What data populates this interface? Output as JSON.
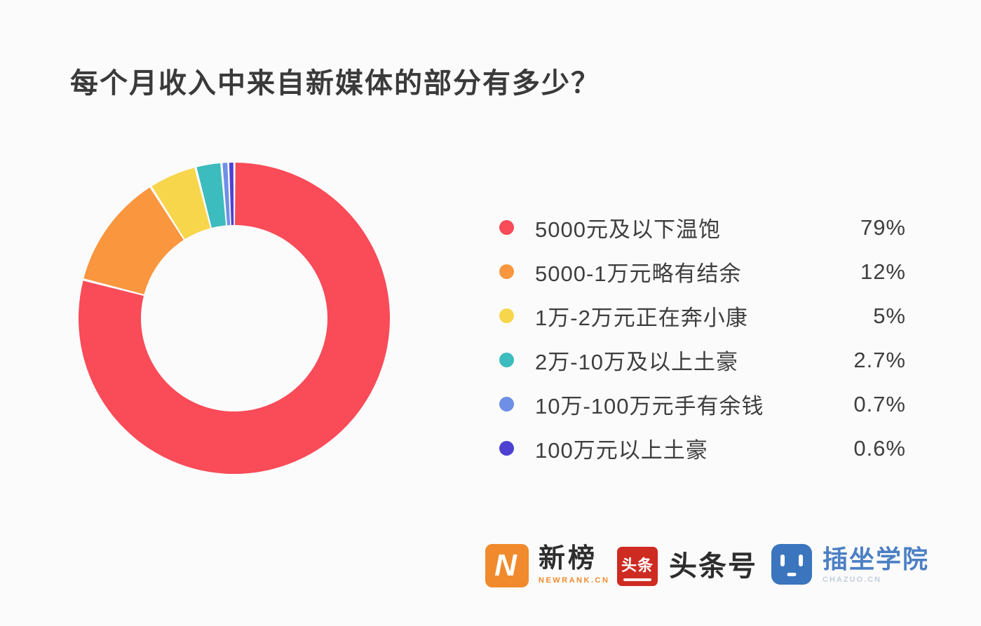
{
  "page": {
    "background_color": "#FBFBFB"
  },
  "title": "每个月收入中来自新媒体的部分有多少？",
  "chart_data": {
    "type": "pie",
    "variant": "donut",
    "title": "每个月收入中来自新媒体的部分有多少？",
    "categories": [
      "5000元及以下温饱",
      "5000-1万元略有结余",
      "1万-2万元正在奔小康",
      "2万-10万及以上土豪",
      "10万-100万元手有余钱",
      "100万元以上土豪"
    ],
    "values": [
      79,
      12,
      5,
      2.7,
      0.7,
      0.6
    ],
    "value_labels": [
      "79%",
      "12%",
      "5%",
      "2.7%",
      "0.7%",
      "0.6%"
    ],
    "colors": [
      "#F94B58",
      "#F9963E",
      "#F7D64B",
      "#3CBCBE",
      "#6E8FE6",
      "#4E41D2"
    ],
    "unit": "%",
    "start_angle_deg": 0,
    "direction": "clockwise",
    "inner_radius_ratio": 0.6,
    "slice_gap_deg": 0.9,
    "legend_position": "right",
    "grid": false
  },
  "legend": {
    "items": [
      {
        "label": "5000元及以下温饱",
        "value_label": "79%",
        "color": "#F94B58"
      },
      {
        "label": "5000-1万元略有结余",
        "value_label": "12%",
        "color": "#F9963E"
      },
      {
        "label": "1万-2万元正在奔小康",
        "value_label": "5%",
        "color": "#F7D64B"
      },
      {
        "label": "2万-10万及以上土豪",
        "value_label": "2.7%",
        "color": "#3CBCBE"
      },
      {
        "label": "10万-100万元手有余钱",
        "value_label": "0.7%",
        "color": "#6E8FE6"
      },
      {
        "label": "100万元以上土豪",
        "value_label": "0.6%",
        "color": "#4E41D2"
      }
    ]
  },
  "footer": {
    "logos": [
      {
        "name": "新榜",
        "caption": "NEWRANK.CN",
        "icon_letter": "N",
        "brand_color": "#F08A2C"
      },
      {
        "name": "头条号",
        "icon_text": "头条",
        "brand_color": "#CE2B22"
      },
      {
        "name": "插坐学院",
        "caption": "CHAZUO.CN",
        "brand_color": "#3B75BD"
      }
    ]
  }
}
